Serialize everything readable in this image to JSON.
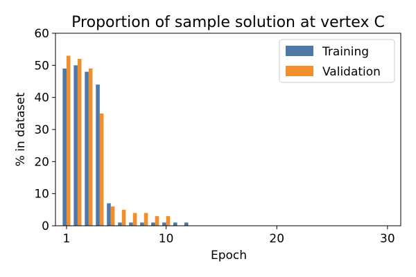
{
  "chart_data": {
    "type": "bar",
    "title": "Proportion of sample solution at vertex C",
    "xlabel": "Epoch",
    "ylabel": "% in dataset",
    "xlim": [
      0,
      31.2
    ],
    "ylim": [
      0,
      60
    ],
    "x_ticks": [
      1,
      10,
      20,
      30
    ],
    "y_ticks": [
      0,
      10,
      20,
      30,
      40,
      50,
      60
    ],
    "grid": false,
    "legend_position": "top-right",
    "categories": [
      1,
      2,
      3,
      4,
      5,
      6,
      7,
      8,
      9,
      10,
      11,
      12
    ],
    "series": [
      {
        "name": "Training",
        "color": "#4e79a7",
        "values": [
          49,
          50,
          48,
          44,
          7,
          1,
          1,
          1,
          1,
          1,
          1,
          1
        ]
      },
      {
        "name": "Validation",
        "color": "#f28e2b",
        "values": [
          53,
          52,
          49,
          35,
          6,
          5,
          4,
          4,
          3,
          3,
          0,
          0
        ]
      }
    ]
  }
}
